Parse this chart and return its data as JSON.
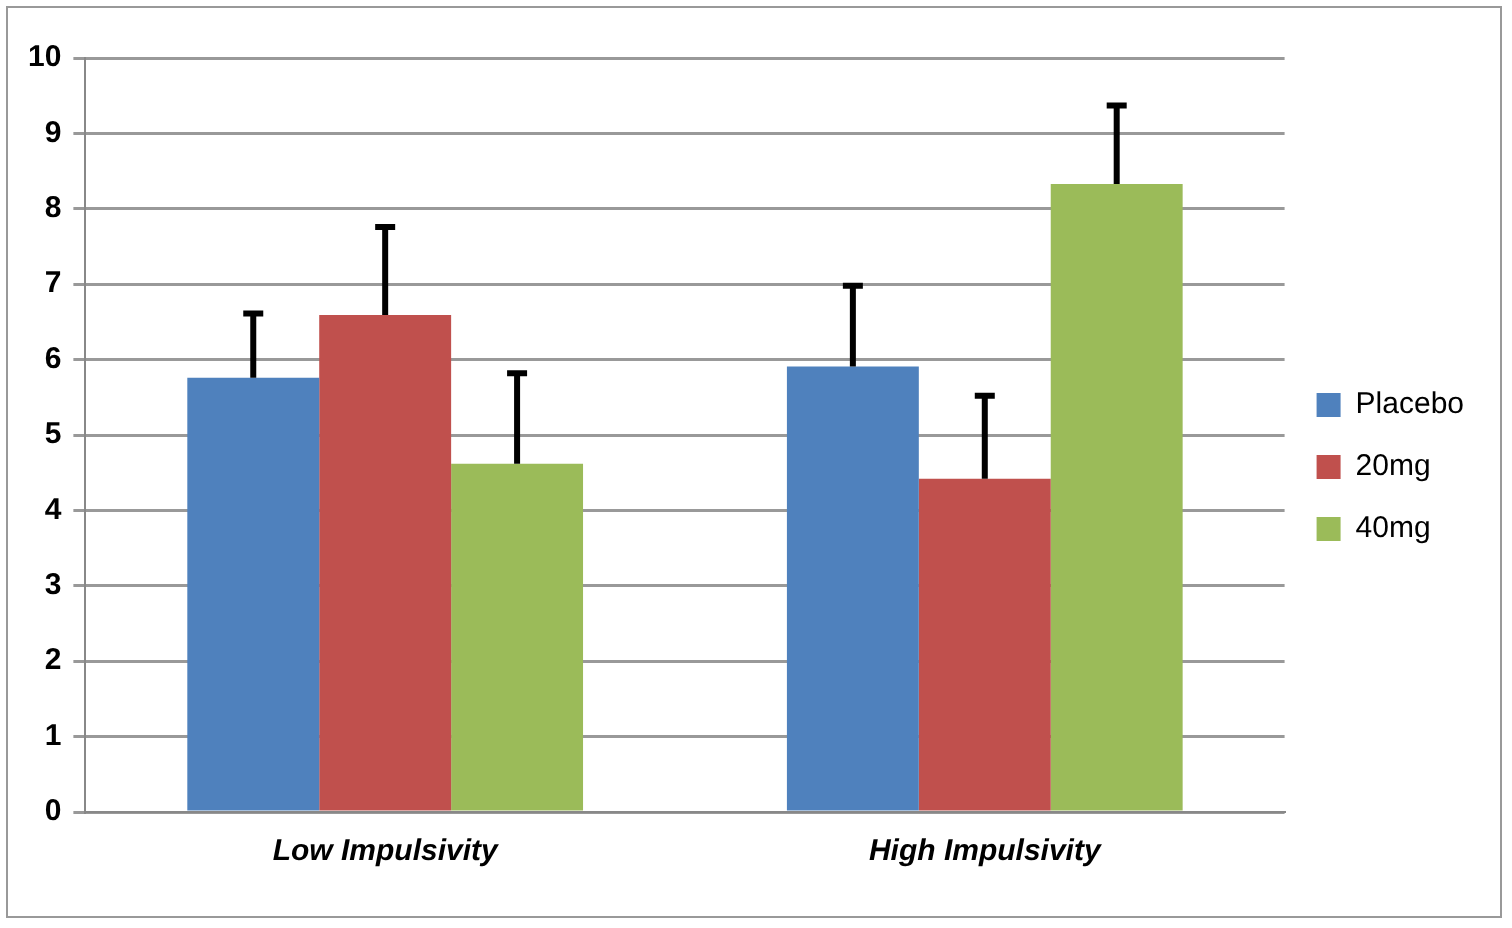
{
  "chart_data": {
    "type": "bar",
    "categories": [
      "Low Impulsivity",
      "High Impulsivity"
    ],
    "series": [
      {
        "name": "Placebo",
        "color": "#4f81bd",
        "values": [
          5.76,
          5.91
        ],
        "errors": [
          [
            5.76,
            6.61
          ],
          [
            5.91,
            6.98
          ]
        ]
      },
      {
        "name": "20mg",
        "color": "#c0504d",
        "values": [
          6.59,
          4.42
        ],
        "errors": [
          [
            6.59,
            7.76
          ],
          [
            4.42,
            5.52
          ]
        ]
      },
      {
        "name": "40mg",
        "color": "#9bbb59",
        "values": [
          4.62,
          8.33
        ],
        "errors": [
          [
            4.62,
            5.82
          ],
          [
            8.33,
            9.37
          ]
        ]
      }
    ],
    "ylim": [
      0,
      10
    ],
    "yticks": [
      0,
      1,
      2,
      3,
      4,
      5,
      6,
      7,
      8,
      9,
      10
    ],
    "grid": "y",
    "legend": "right"
  }
}
